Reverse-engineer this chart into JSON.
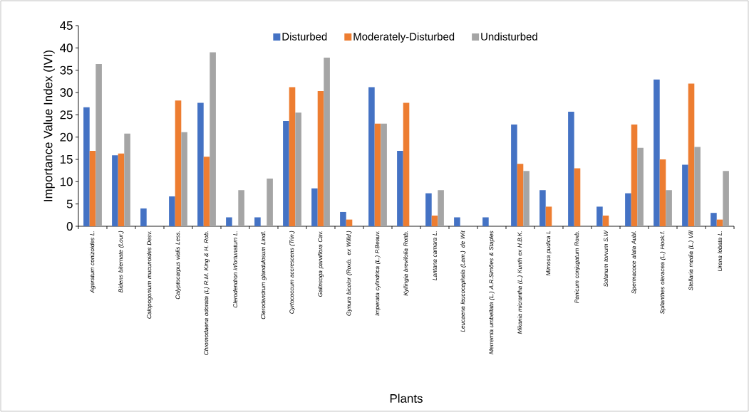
{
  "chart_data": {
    "type": "bar",
    "xlabel": "Plants",
    "ylabel": "Importance Value Index (IVI)",
    "categories": [
      "Ageratum conizoides  L.",
      "Bidens  biternate (Lour.)",
      "Calopogonium mucunoides Desv.",
      "Calyptocarpus vialis Less.",
      "Chromodaena odorata (L) R.M. King & H. Rob.",
      "Clerodendron infortunatum L.",
      "Clerodendrum glandulosum Lindl.",
      "Cyrtococcum accrescens (Trin.)",
      "Galinsoga parviflora Cav.",
      "Gynura  bicolor (Roxb. ex Willd.)",
      "Imperata  cylindrica (L.) P.Beauv.",
      "Kyllingia  brevifolia Rottb.",
      "Lantana  camara L.",
      "Leucaena leucocephala (Lam.) de Wit",
      "Merremia umbellata (L.) A.R.Simões & Staples",
      "Mikania micrantha (L.) Kunth ex H.B.K.",
      "Mimosa pudica L",
      "Panicum conjugatum Roxb.",
      "Solanum torvum S.W",
      "Spermacoce alata Aubl.",
      "Spilanthes oleracea (L.) Hook.f.",
      "Stellaria  media (L.) Vill",
      "Urena lobata L."
    ],
    "series": [
      {
        "name": "Disturbed",
        "color": "#4472c4",
        "values": [
          26.7,
          15.9,
          4.0,
          6.7,
          27.7,
          2.0,
          2.0,
          23.6,
          8.5,
          3.2,
          31.2,
          16.9,
          7.4,
          2.0,
          2.0,
          22.8,
          8.1,
          25.7,
          4.4,
          7.4,
          32.9,
          13.8,
          3.0
        ]
      },
      {
        "name": "Moderately-Disturbed",
        "color": "#ed7d31",
        "values": [
          16.9,
          16.3,
          null,
          28.2,
          15.6,
          null,
          null,
          31.2,
          30.3,
          1.5,
          23.0,
          27.7,
          2.4,
          null,
          null,
          14.0,
          4.4,
          13.0,
          2.4,
          22.8,
          15.0,
          32.0,
          1.5
        ]
      },
      {
        "name": "Undisturbed",
        "color": "#a5a5a5",
        "values": [
          36.4,
          20.8,
          null,
          21.1,
          39.0,
          8.1,
          10.7,
          25.5,
          37.8,
          null,
          23.0,
          null,
          8.1,
          null,
          null,
          12.4,
          null,
          null,
          null,
          17.6,
          8.1,
          17.8,
          12.4
        ]
      }
    ],
    "ylim": [
      0,
      45
    ],
    "yticks": [
      0,
      5,
      10,
      15,
      20,
      25,
      30,
      35,
      40,
      45
    ],
    "legend": "top",
    "grid": false
  }
}
